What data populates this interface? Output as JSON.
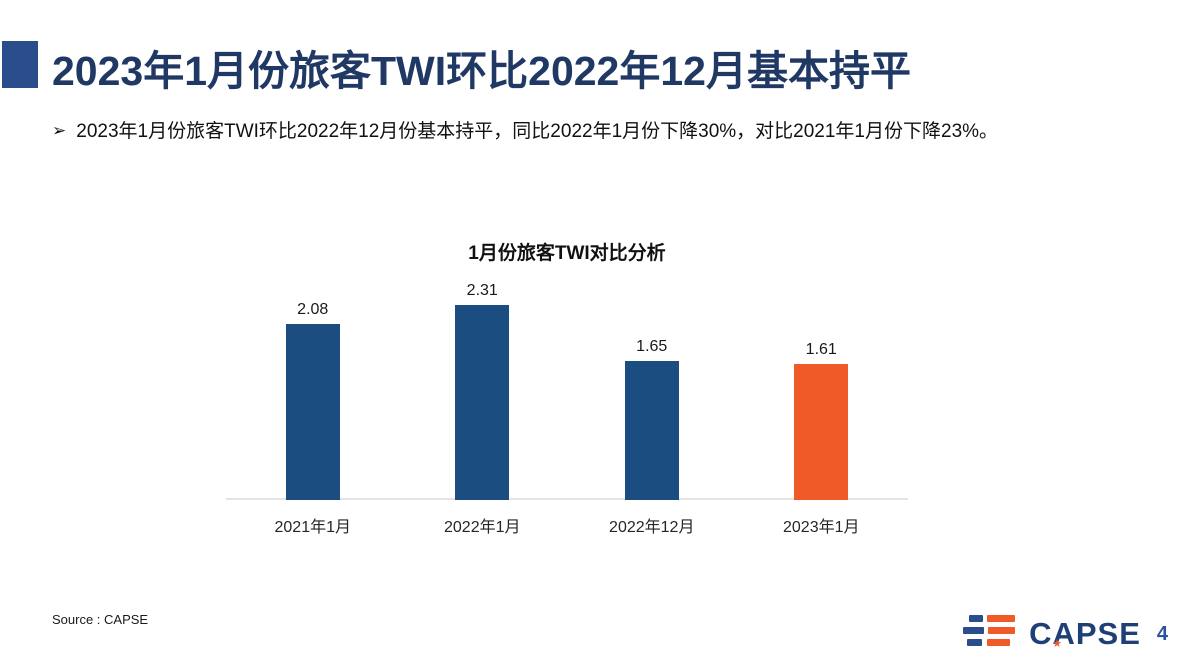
{
  "slide": {
    "title": "2023年1月份旅客TWI环比2022年12月基本持平",
    "bullet_marker": "➢",
    "bullet_text": "2023年1月份旅客TWI环比2022年12月份基本持平，同比2022年1月份下降30%，对比2021年1月份下降23%。"
  },
  "chart_data": {
    "type": "bar",
    "title": "1月份旅客TWI对比分析",
    "categories": [
      "2021年1月",
      "2022年1月",
      "2022年12月",
      "2023年1月"
    ],
    "values": [
      2.08,
      2.31,
      1.65,
      1.61
    ],
    "value_labels": [
      "2.08",
      "2.31",
      "1.65",
      "1.61"
    ],
    "bar_colors": [
      "#1C4D81",
      "#1C4D81",
      "#1C4D81",
      "#F05A28"
    ],
    "xlabel": "",
    "ylabel": "",
    "ylim": [
      0,
      2.5
    ],
    "grid": false,
    "legend": "none",
    "value_labels_shown": true
  },
  "footer": {
    "source": "Source : CAPSE",
    "logo_text": "CAPSE",
    "logo_star": "★",
    "page_number": "4"
  },
  "colors": {
    "title_navy": "#1F3864",
    "accent_square_blue": "#2A4E8C",
    "bar_blue": "#1C4D81",
    "bar_orange": "#F05A28",
    "axis_line_gray": "#E4E4E4",
    "logo_navy": "#1F4077",
    "logo_orange": "#F05A28",
    "page_number_blue": "#2B51A0"
  }
}
